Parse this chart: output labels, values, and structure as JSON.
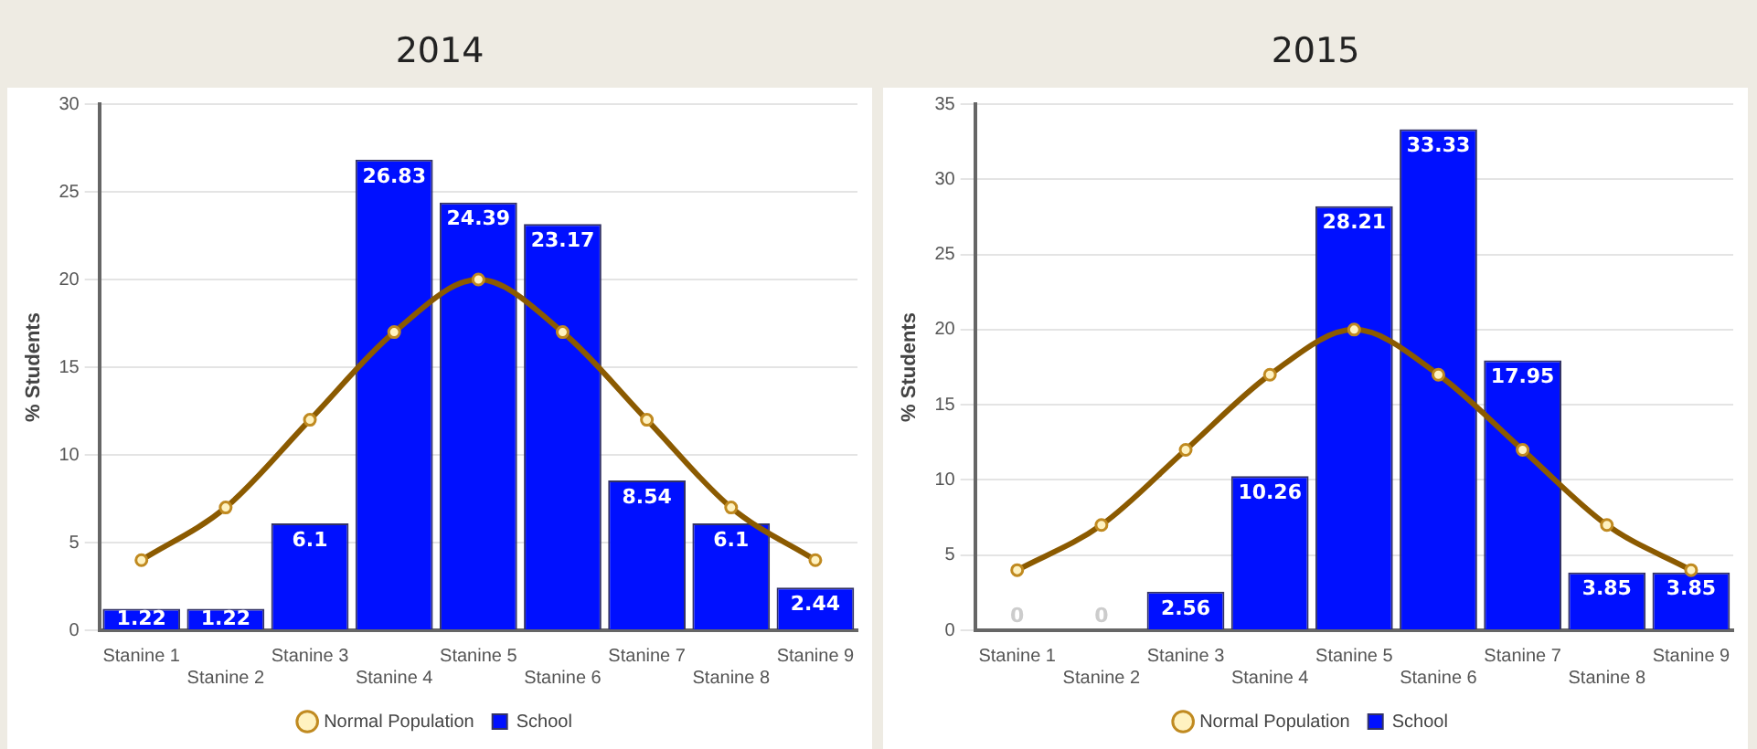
{
  "chart_data": [
    {
      "type": "bar",
      "title": "2014",
      "ylabel": "% Students",
      "categories": [
        "Stanine 1",
        "Stanine 2",
        "Stanine 3",
        "Stanine 4",
        "Stanine 5",
        "Stanine 6",
        "Stanine 7",
        "Stanine 8",
        "Stanine 9"
      ],
      "series": [
        {
          "name": "School",
          "color": "#0010ff",
          "values": [
            1.22,
            1.22,
            6.1,
            26.83,
            24.39,
            23.17,
            8.54,
            6.1,
            2.44
          ],
          "value_labels": [
            "1.22",
            "1.22",
            "6.1",
            "26.83",
            "24.39",
            "23.17",
            "8.54",
            "6.1",
            "2.44"
          ]
        },
        {
          "name": "Normal Population",
          "type": "line",
          "color": "#8b5a00",
          "values": [
            4,
            7,
            12,
            17,
            20,
            17,
            12,
            7,
            4
          ]
        }
      ],
      "ylim": [
        0,
        30
      ],
      "yticks": [
        0,
        5,
        10,
        15,
        20,
        25,
        30
      ],
      "grid": "y",
      "legend": "bottom",
      "marker": "circle",
      "line_style": "solid"
    },
    {
      "type": "bar",
      "title": "2015",
      "ylabel": "% Students",
      "categories": [
        "Stanine 1",
        "Stanine 2",
        "Stanine 3",
        "Stanine 4",
        "Stanine 5",
        "Stanine 6",
        "Stanine 7",
        "Stanine 8",
        "Stanine 9"
      ],
      "series": [
        {
          "name": "School",
          "color": "#0010ff",
          "values": [
            0,
            0,
            2.56,
            10.26,
            28.21,
            33.33,
            17.95,
            3.85,
            3.85
          ],
          "value_labels": [
            "0",
            "0",
            "2.56",
            "10.26",
            "28.21",
            "33.33",
            "17.95",
            "3.85",
            "3.85"
          ]
        },
        {
          "name": "Normal Population",
          "type": "line",
          "color": "#8b5a00",
          "values": [
            4,
            7,
            12,
            17,
            20,
            17,
            12,
            7,
            4
          ]
        }
      ],
      "ylim": [
        0,
        35
      ],
      "yticks": [
        0,
        5,
        10,
        15,
        20,
        25,
        30,
        35
      ],
      "grid": "y",
      "legend": "bottom",
      "marker": "circle",
      "line_style": "solid"
    }
  ]
}
